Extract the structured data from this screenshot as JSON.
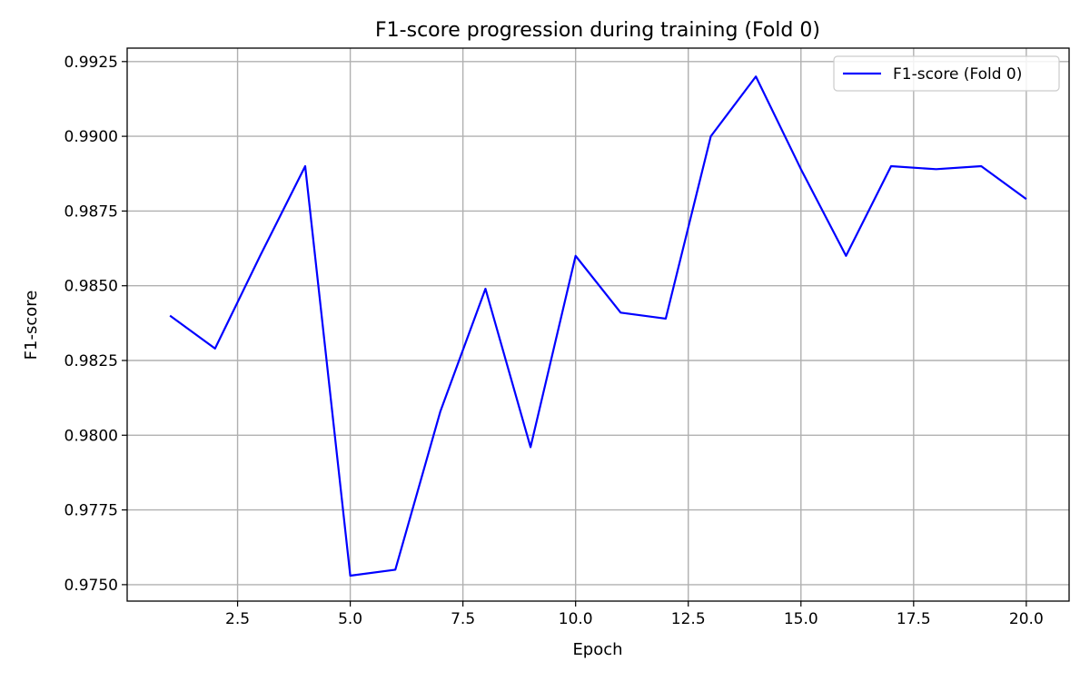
{
  "chart_data": {
    "type": "line",
    "title": "F1-score progression during training (Fold 0)",
    "xlabel": "Epoch",
    "ylabel": "F1-score",
    "xlim": [
      0.05,
      20.95
    ],
    "ylim": [
      0.97445,
      0.99295
    ],
    "xticks": [
      2.5,
      5.0,
      7.5,
      10.0,
      12.5,
      15.0,
      17.5,
      20.0
    ],
    "xtick_labels": [
      "2.5",
      "5.0",
      "7.5",
      "10.0",
      "12.5",
      "15.0",
      "17.5",
      "20.0"
    ],
    "yticks": [
      0.975,
      0.9775,
      0.98,
      0.9825,
      0.985,
      0.9875,
      0.99,
      0.9925
    ],
    "ytick_labels": [
      "0.9750",
      "0.9775",
      "0.9800",
      "0.9825",
      "0.9850",
      "0.9875",
      "0.9900",
      "0.9925"
    ],
    "grid": true,
    "legend_position": "top-right",
    "series": [
      {
        "name": "F1-score (Fold 0)",
        "color": "#0000ff",
        "x": [
          1,
          2,
          3,
          4,
          5,
          6,
          7,
          8,
          9,
          10,
          11,
          12,
          13,
          14,
          15,
          16,
          17,
          18,
          19,
          20
        ],
        "y": [
          0.984,
          0.9829,
          0.986,
          0.989,
          0.9753,
          0.9755,
          0.9808,
          0.9849,
          0.9796,
          0.986,
          0.9841,
          0.9839,
          0.99,
          0.992,
          0.9889,
          0.986,
          0.989,
          0.9889,
          0.989,
          0.9879
        ]
      }
    ]
  }
}
